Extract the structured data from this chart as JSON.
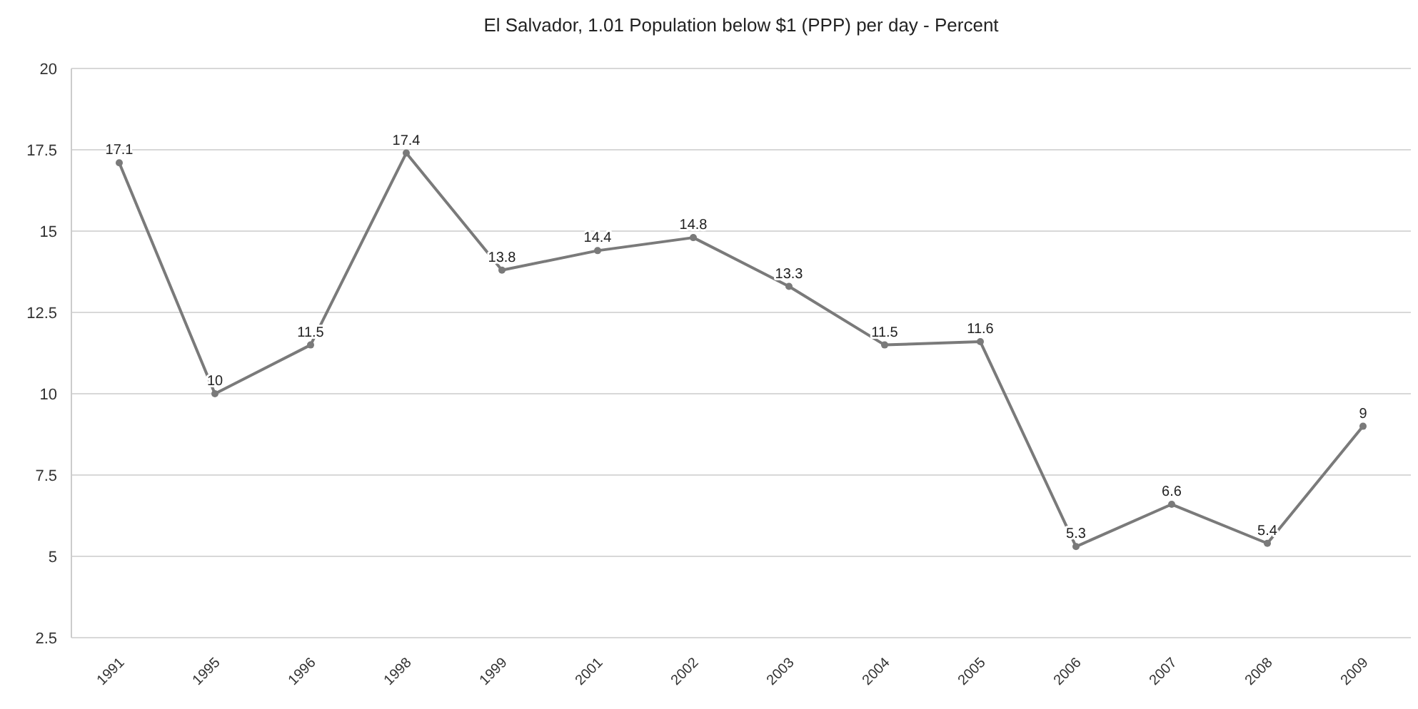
{
  "chart_data": {
    "type": "line",
    "title": "El Salvador, 1.01 Population below $1 (PPP) per day - Percent",
    "categories": [
      "1991",
      "1995",
      "1996",
      "1998",
      "1999",
      "2001",
      "2002",
      "2003",
      "2004",
      "2005",
      "2006",
      "2007",
      "2008",
      "2009"
    ],
    "series": [
      {
        "color": "#7a7a7a",
        "values": [
          17.1,
          10,
          11.5,
          17.4,
          13.8,
          14.4,
          14.8,
          13.3,
          11.5,
          11.6,
          5.3,
          6.6,
          5.4,
          9
        ]
      }
    ],
    "ylim": [
      2.5,
      20
    ],
    "yticks": [
      2.5,
      5,
      7.5,
      10,
      12.5,
      15,
      17.5,
      20
    ],
    "grid": "y",
    "marker": "circle",
    "data_labels": true
  }
}
